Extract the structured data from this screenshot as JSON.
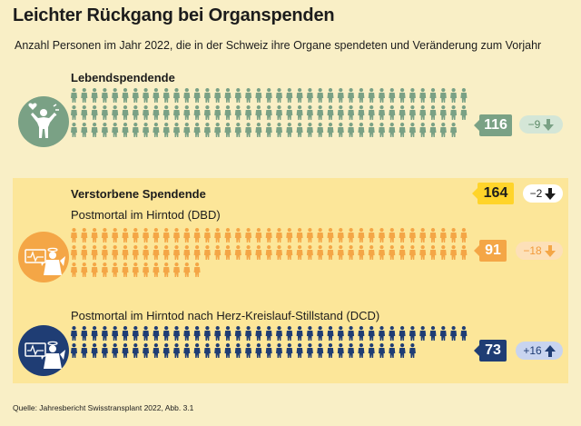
{
  "title": "Leichter Rückgang bei Organspenden",
  "subtitle": "Anzahl Personen im Jahr 2022, die in der Schweiz ihre Organe spendeten und Veränderung zum Vorjahr",
  "source": "Quelle: Jahresbericht Swisstransplant 2022, Abb. 3.1",
  "colors": {
    "background": "#f9efc6",
    "panel": "#fce699",
    "living": "#7aa185",
    "dbd": "#f4a646",
    "dcd": "#1f3d74",
    "total": "#ffd42a"
  },
  "icons": {
    "living": "person-with-heart-icon",
    "dbd": "angel-with-ecg-icon",
    "dcd": "angel-with-ecg-icon",
    "person": "person-icon",
    "decrease": "arrow-down-icon",
    "increase": "arrow-up-icon"
  },
  "chart_data": {
    "type": "pictogram",
    "title": "Leichter Rückgang bei Organspenden",
    "unit": "Personen",
    "living": {
      "label": "Lebendspendende",
      "value": 116,
      "change": "−9",
      "direction": "down"
    },
    "deceased": {
      "label": "Verstorbene Spendende",
      "value": 164,
      "change": "−2",
      "direction": "down",
      "groups": [
        {
          "label": "Postmortal im Hirntod (DBD)",
          "value": 91,
          "change": "−18",
          "direction": "down"
        },
        {
          "label": "Postmortal im Hirntod nach Herz-Kreislauf-Stillstand (DCD)",
          "value": 73,
          "change": "+16",
          "direction": "up"
        }
      ]
    }
  }
}
